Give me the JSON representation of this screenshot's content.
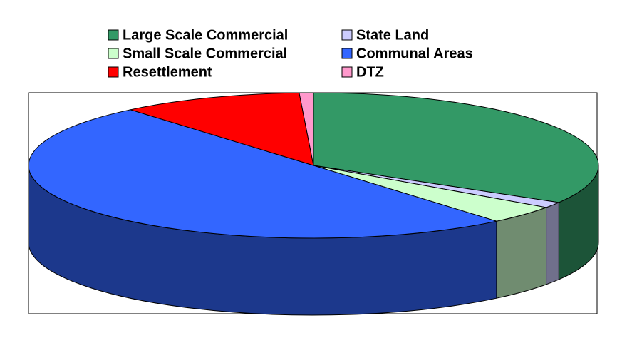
{
  "chart_data": {
    "type": "pie3d",
    "categories": [
      "Large Scale Commercial",
      "State Land",
      "Small Scale Commercial",
      "Communal Areas",
      "Resettlement",
      "DTZ"
    ],
    "values": [
      33.5,
      1.3,
      4.1,
      50,
      10.3,
      0.8
    ],
    "colors": [
      "#339966",
      "#ccccff",
      "#ccffcc",
      "#3366ff",
      "#ff0000",
      "#ff99cc"
    ],
    "legend": "top"
  }
}
